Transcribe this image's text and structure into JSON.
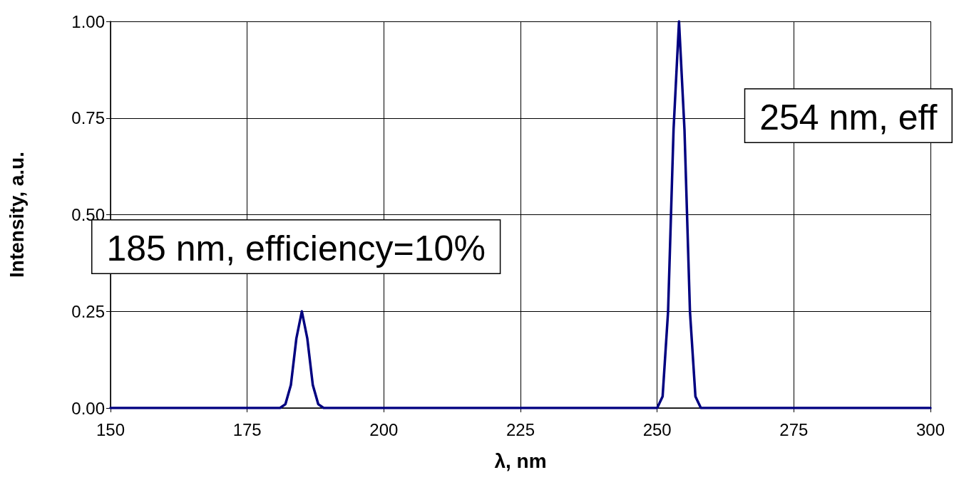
{
  "chart_data": {
    "type": "line",
    "xlabel": "λ, nm",
    "ylabel": "Intensity, a.u.",
    "x": [
      150,
      181,
      182,
      183,
      184,
      185,
      186,
      187,
      188,
      189,
      250,
      251,
      252,
      253,
      254,
      255,
      256,
      257,
      258,
      300
    ],
    "series": [
      {
        "color": "#000080",
        "values": [
          0,
          0,
          0.01,
          0.06,
          0.18,
          0.25,
          0.18,
          0.06,
          0.01,
          0,
          0,
          0.03,
          0.25,
          0.72,
          1.0,
          0.72,
          0.25,
          0.03,
          0,
          0
        ]
      }
    ],
    "xlim": [
      150,
      300
    ],
    "xticks": [
      150,
      175,
      200,
      225,
      250,
      275,
      300
    ],
    "ylim": [
      0,
      1
    ],
    "yticks": [
      {
        "value": 0,
        "label": "0.00"
      },
      {
        "value": 0.25,
        "label": "0.25"
      },
      {
        "value": 0.5,
        "label": "0.50"
      },
      {
        "value": 0.75,
        "label": "0.75"
      },
      {
        "value": 1,
        "label": "1.00"
      }
    ],
    "grid": true,
    "marker": "none",
    "line_style": "solid",
    "annotations": [
      "185 nm, efficiency=10%",
      "254 nm, eff"
    ]
  }
}
